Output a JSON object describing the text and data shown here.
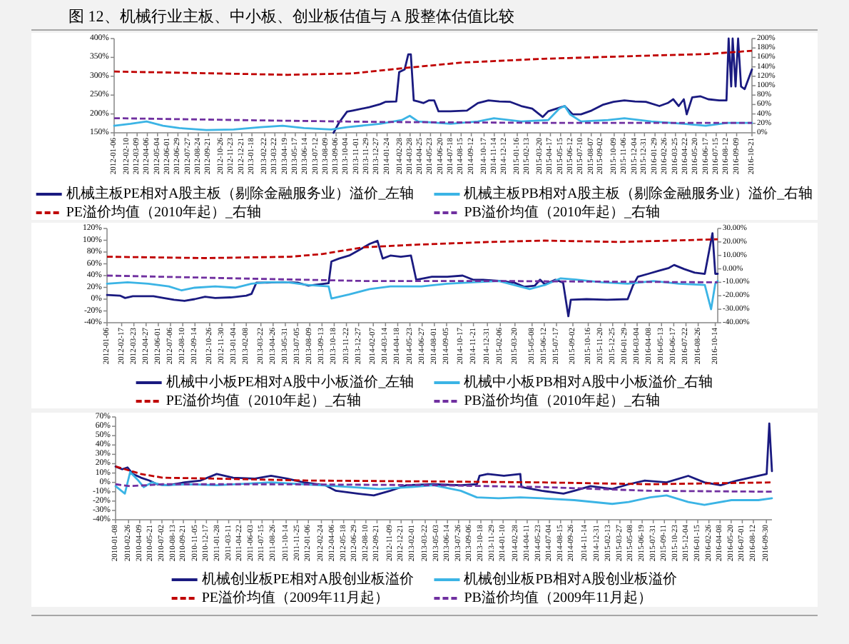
{
  "chart_data": [
    {
      "type": "line",
      "title": "图 12、机械行业主板、中小板、创业板估值与 A 股整体估值比较",
      "legend": "bottom",
      "xlim": [
        "2012-01-06",
        "2016-10-21"
      ],
      "xticks": [
        "2012-01-06",
        "2012-02-10",
        "2012-03-09",
        "2012-04-06",
        "2012-05-04",
        "2012-06-01",
        "2012-06-29",
        "2012-07-27",
        "2012-08-24",
        "2012-09-21",
        "2012-10-26",
        "2012-11-23",
        "2012-12-21",
        "2013-01-18",
        "2013-02-22",
        "2013-03-22",
        "2013-04-19",
        "2013-05-17",
        "2013-06-14",
        "2013-07-12",
        "2013-08-09",
        "2013-09-06",
        "2013-10-04",
        "2013-11-01",
        "2013-11-29",
        "2013-12-27",
        "2014-01-24",
        "2014-02-28",
        "2014-03-28",
        "2014-04-25",
        "2014-05-23",
        "2014-06-20",
        "2014-07-18",
        "2014-08-15",
        "2014-09-12",
        "2014-10-17",
        "2014-11-14",
        "2014-12-12",
        "2015-01-16",
        "2015-02-13",
        "2015-03-20",
        "2015-04-17",
        "2015-05-15",
        "2015-06-12",
        "2015-07-10",
        "2015-08-07",
        "2015-09-02",
        "2015-10-09",
        "2015-11-06",
        "2015-12-04",
        "2015-12-31",
        "2016-01-29",
        "2016-02-26",
        "2016-03-25",
        "2016-04-22",
        "2016-05-20",
        "2016-06-17",
        "2016-07-15",
        "2016-08-12",
        "2016-09-09",
        "2016-10-21"
      ],
      "ylim": [
        150,
        400
      ],
      "yticks": [
        {
          "value": 150,
          "label": "150%"
        },
        {
          "value": 200,
          "label": "200%"
        },
        {
          "value": 250,
          "label": "250%"
        },
        {
          "value": 300,
          "label": "300%"
        },
        {
          "value": 350,
          "label": "350%"
        },
        {
          "value": 400,
          "label": "400%"
        }
      ],
      "y2lim": [
        0,
        200
      ],
      "y2ticks": [
        {
          "value": 0,
          "label": "0%"
        },
        {
          "value": 20,
          "label": "20%"
        },
        {
          "value": 40,
          "label": "40%"
        },
        {
          "value": 60,
          "label": "60%"
        },
        {
          "value": 80,
          "label": "80%"
        },
        {
          "value": 100,
          "label": "100%"
        },
        {
          "value": 120,
          "label": "120%"
        },
        {
          "value": 140,
          "label": "140%"
        },
        {
          "value": 160,
          "label": "160%"
        },
        {
          "value": 180,
          "label": "180%"
        },
        {
          "value": 200,
          "label": "200%"
        }
      ],
      "series": [
        {
          "name": "机械主板PE相对A股主板（剔除金融服务业）溢价_左轴",
          "color": "#1a1a80",
          "line_style": "solid",
          "x": [
            "2013-08-30",
            "2013-09-14",
            "2013-10-06",
            "2013-10-22",
            "2013-12-06",
            "2014-01-05",
            "2014-01-19",
            "2014-02-18",
            "2014-02-26",
            "2014-03-13",
            "2014-03-23",
            "2014-03-30",
            "2014-04-07",
            "2014-04-19",
            "2014-05-04",
            "2014-05-19",
            "2014-06-02",
            "2014-06-14",
            "2014-07-17",
            "2014-08-31",
            "2014-09-30",
            "2014-10-29",
            "2014-11-28",
            "2014-12-28",
            "2015-01-27",
            "2015-02-26",
            "2015-03-27",
            "2015-04-11",
            "2015-05-04",
            "2015-05-26",
            "2015-06-17",
            "2015-07-10",
            "2015-08-08",
            "2015-09-07",
            "2015-10-07",
            "2015-11-06",
            "2015-12-05",
            "2016-01-04",
            "2016-02-10",
            "2016-03-04",
            "2016-03-19",
            "2016-04-03",
            "2016-04-17",
            "2016-04-25",
            "2016-05-10",
            "2016-06-01",
            "2016-06-23",
            "2016-07-23",
            "2016-08-12",
            "2016-08-18",
            "2016-08-25",
            "2016-08-29",
            "2016-09-06",
            "2016-09-13",
            "2016-09-21",
            "2016-10-01",
            "2016-10-21"
          ],
          "values": [
            150,
            177,
            206,
            209,
            218,
            226,
            232,
            233,
            311,
            318,
            358,
            358,
            236,
            233,
            229,
            236,
            236,
            207,
            207,
            209,
            229,
            236,
            233,
            232,
            221,
            214,
            192,
            207,
            214,
            221,
            199,
            199,
            209,
            224,
            232,
            236,
            233,
            232,
            221,
            229,
            239,
            221,
            239,
            199,
            244,
            247,
            239,
            236,
            236,
            400,
            273,
            400,
            273,
            400,
            273,
            266,
            318
          ]
        },
        {
          "name": "机械主板PB相对A股主板（剔除金融服务业）溢价_右轴",
          "color": "#3bb4e5",
          "line_style": "solid",
          "axis": "y2",
          "x": [
            "2012-01-06",
            "2012-02-20",
            "2012-04-04",
            "2012-05-19",
            "2012-07-03",
            "2012-09-15",
            "2012-11-29",
            "2013-02-11",
            "2013-04-12",
            "2013-06-10",
            "2013-08-24",
            "2013-10-06",
            "2014-01-05",
            "2014-03-05",
            "2014-03-27",
            "2014-04-19",
            "2014-07-17",
            "2014-09-30",
            "2014-11-13",
            "2015-01-27",
            "2015-04-11",
            "2015-05-11",
            "2015-05-26",
            "2015-06-10",
            "2015-07-10",
            "2015-09-22",
            "2015-11-06",
            "2016-01-19",
            "2016-04-17",
            "2016-06-16",
            "2016-08-15",
            "2016-10-21"
          ],
          "values": [
            15,
            19,
            24,
            15,
            10,
            6,
            7,
            12,
            15,
            10,
            7,
            12,
            19,
            27,
            36,
            24,
            19,
            24,
            31,
            24,
            27,
            51,
            57,
            39,
            24,
            27,
            31,
            24,
            19,
            15,
            21,
            21
          ]
        },
        {
          "name": "PE溢价均值（2010年起）_右轴",
          "color": "#c00000",
          "line_style": "dashed",
          "axis": "y2",
          "x": [
            "2012-01-06",
            "2012-10-15",
            "2013-04-26",
            "2013-10-22",
            "2014-03-20",
            "2014-08-16",
            "2015-03-27",
            "2016-01-19",
            "2016-06-16",
            "2016-10-21"
          ],
          "values": [
            130,
            126,
            123,
            126,
            138,
            149,
            157,
            164,
            167,
            174
          ]
        },
        {
          "name": "PB溢价均值（2010年起）_右轴",
          "color": "#7030a0",
          "line_style": "dashed",
          "axis": "y2",
          "x": [
            "2012-01-06",
            "2013-03-13",
            "2014-01-05",
            "2015-03-27",
            "2016-10-21"
          ],
          "values": [
            31,
            26,
            23,
            21,
            21
          ]
        }
      ]
    },
    {
      "type": "line",
      "legend": "bottom",
      "xlim": [
        "2012-01-06",
        "2016-10-21"
      ],
      "xticks": [
        "2012-01-06",
        "2012-02-17",
        "2012-03-23",
        "2012-04-27",
        "2012-06-01",
        "2012-07-06",
        "2012-08-10",
        "2012-09-14",
        "2012-10-26",
        "2012-11-30",
        "2013-01-04",
        "2013-02-08",
        "2013-03-22",
        "2013-04-26",
        "2013-05-31",
        "2013-07-05",
        "2013-08-09",
        "2013-09-13",
        "2013-10-18",
        "2013-11-22",
        "2013-12-27",
        "2014-02-07",
        "2014-03-14",
        "2014-04-18",
        "2014-05-23",
        "2014-06-27",
        "2014-08-01",
        "2014-09-05",
        "2014-10-17",
        "2014-11-21",
        "2014-12-31",
        "2015-02-06",
        "2015-03-20",
        "2015-05-08",
        "2015-06-12",
        "2015-07-17",
        "2015-09-02",
        "2015-10-16",
        "2015-11-20",
        "2015-12-25",
        "2016-01-29",
        "2016-03-04",
        "2016-04-08",
        "2016-05-13",
        "2016-06-17",
        "2016-07-22",
        "2016-08-26",
        "2016-10-14"
      ],
      "ylim": [
        -40,
        120
      ],
      "yticks": [
        {
          "value": -40,
          "label": "-40%"
        },
        {
          "value": -20,
          "label": "-20%"
        },
        {
          "value": 0,
          "label": "0%"
        },
        {
          "value": 20,
          "label": "20%"
        },
        {
          "value": 40,
          "label": "40%"
        },
        {
          "value": 60,
          "label": "60%"
        },
        {
          "value": 80,
          "label": "80%"
        },
        {
          "value": 100,
          "label": "100%"
        },
        {
          "value": 120,
          "label": "120%"
        }
      ],
      "y2lim": [
        -40,
        30
      ],
      "y2ticks": [
        {
          "value": -40,
          "label": "-40.00%"
        },
        {
          "value": -30,
          "label": "-30.00%"
        },
        {
          "value": -20,
          "label": "-20.00%"
        },
        {
          "value": -10,
          "label": "-10.00%"
        },
        {
          "value": 0,
          "label": "0.00%"
        },
        {
          "value": 10,
          "label": "10.00%"
        },
        {
          "value": 20,
          "label": "20.00%"
        },
        {
          "value": 30,
          "label": "30.00%"
        }
      ],
      "series": [
        {
          "name": "机械中小板PE相对A股中小板溢价_左轴",
          "color": "#1a1a80",
          "line_style": "solid",
          "x": [
            "2012-01-06",
            "2012-02-12",
            "2012-02-27",
            "2012-03-20",
            "2012-05-18",
            "2012-06-16",
            "2012-07-16",
            "2012-08-15",
            "2012-09-13",
            "2012-10-13",
            "2012-11-11",
            "2012-12-25",
            "2013-02-08",
            "2013-02-23",
            "2013-03-09",
            "2013-04-08",
            "2013-05-22",
            "2013-07-05",
            "2013-08-04",
            "2013-09-03",
            "2013-10-02",
            "2013-10-10",
            "2013-11-01",
            "2013-11-30",
            "2013-12-30",
            "2014-01-28",
            "2014-02-19",
            "2014-03-06",
            "2014-03-28",
            "2014-04-27",
            "2014-05-26",
            "2014-06-10",
            "2014-07-25",
            "2014-09-07",
            "2014-10-21",
            "2014-11-20",
            "2014-12-19",
            "2015-02-02",
            "2015-03-18",
            "2015-04-16",
            "2015-05-16",
            "2015-05-31",
            "2015-06-14",
            "2015-07-14",
            "2015-08-05",
            "2015-08-20",
            "2015-08-27",
            "2015-10-11",
            "2015-12-09",
            "2016-02-06",
            "2016-02-21",
            "2016-03-06",
            "2016-04-05",
            "2016-05-04",
            "2016-06-03",
            "2016-06-18",
            "2016-07-17",
            "2016-08-16",
            "2016-09-14",
            "2016-10-06",
            "2016-10-14",
            "2016-10-21"
          ],
          "values": [
            7,
            6,
            2,
            5,
            5,
            2,
            -1,
            -3,
            0,
            4,
            2,
            3,
            6,
            9,
            28,
            28,
            29,
            28,
            23,
            25,
            27,
            64,
            69,
            74,
            84,
            94,
            99,
            69,
            74,
            72,
            74,
            33,
            38,
            38,
            40,
            33,
            33,
            31,
            28,
            21,
            23,
            33,
            25,
            33,
            28,
            -29,
            -1,
            0,
            -1,
            0,
            23,
            38,
            43,
            48,
            53,
            58,
            51,
            45,
            43,
            112,
            43,
            43
          ]
        },
        {
          "name": "机械中小板PB相对A股中小板溢价_右轴",
          "color": "#3bb4e5",
          "line_style": "solid",
          "axis": "y2",
          "x": [
            "2012-01-06",
            "2012-03-05",
            "2012-05-03",
            "2012-07-01",
            "2012-08-07",
            "2012-09-13",
            "2012-11-11",
            "2013-01-09",
            "2013-02-23",
            "2013-04-08",
            "2013-06-06",
            "2013-08-04",
            "2013-10-02",
            "2013-10-10",
            "2013-11-30",
            "2014-01-28",
            "2014-03-28",
            "2014-06-25",
            "2014-09-07",
            "2014-11-20",
            "2015-02-02",
            "2015-04-02",
            "2015-05-01",
            "2015-06-14",
            "2015-07-29",
            "2015-09-11",
            "2015-11-24",
            "2016-02-06",
            "2016-04-20",
            "2016-07-02",
            "2016-09-14",
            "2016-10-02",
            "2016-10-14",
            "2016-10-21"
          ],
          "values": [
            -11,
            -10,
            -11,
            -13,
            -16,
            -14,
            -13,
            -14,
            -11,
            -10,
            -10,
            -12,
            -13,
            -22,
            -19,
            -15,
            -13,
            -13,
            -11,
            -10,
            -9,
            -13,
            -15,
            -12,
            -7,
            -8,
            -10,
            -11,
            -9,
            -11,
            -12,
            -30,
            -11,
            -9
          ]
        },
        {
          "name": "PE溢价均值（2010年起）_右轴",
          "color": "#c00000",
          "line_style": "dashed",
          "axis": "y2",
          "x": [
            "2012-01-06",
            "2012-10-15",
            "2013-06-14",
            "2013-09-13",
            "2014-01-10",
            "2014-06-13",
            "2015-01-09",
            "2015-06-12",
            "2016-01-08",
            "2016-06-10",
            "2016-10-21"
          ],
          "values": [
            9,
            8,
            9,
            11,
            16,
            18,
            20,
            21,
            20,
            21,
            22
          ]
        },
        {
          "name": "PB溢价均值（2010年起）_右轴",
          "color": "#7030a0",
          "line_style": "dashed",
          "axis": "y2",
          "x": [
            "2012-01-06",
            "2013-01-04",
            "2014-01-10",
            "2015-01-09",
            "2016-10-21"
          ],
          "values": [
            -5,
            -7,
            -9,
            -9,
            -10
          ]
        }
      ]
    },
    {
      "type": "line",
      "legend": "bottom",
      "xlim": [
        "2010-01-08",
        "2016-10-21"
      ],
      "xticks": [
        "2010-01-08",
        "2010-02-26",
        "2010-04-09",
        "2010-05-21",
        "2010-07-02",
        "2010-08-13",
        "2010-09-21",
        "2010-11-05",
        "2010-12-17",
        "2011-01-28",
        "2011-03-11",
        "2011-04-22",
        "2011-06-03",
        "2011-07-15",
        "2011-08-26",
        "2011-10-14",
        "2011-11-25",
        "2012-01-06",
        "2012-02-24",
        "2012-04-06",
        "2012-05-18",
        "2012-06-29",
        "2012-08-10",
        "2012-09-21",
        "2012-11-09",
        "2012-12-21",
        "2013-02-01",
        "2013-03-22",
        "2013-05-03",
        "2013-06-14",
        "2013-07-26",
        "2013-09-06",
        "2013-10-18",
        "2013-11-29",
        "2014-01-10",
        "2014-02-28",
        "2014-04-11",
        "2014-05-23",
        "2014-07-04",
        "2014-08-15",
        "2014-09-26",
        "2014-11-14",
        "2014-12-31",
        "2015-02-13",
        "2015-03-27",
        "2015-05-08",
        "2015-06-19",
        "2015-07-31",
        "2015-09-11",
        "2015-10-23",
        "2015-12-04",
        "2016-01-15",
        "2016-02-26",
        "2016-04-08",
        "2016-05-20",
        "2016-07-01",
        "2016-08-12",
        "2016-09-30"
      ],
      "ylim": [
        -40,
        70
      ],
      "yticks": [
        {
          "value": -40,
          "label": "-40%"
        },
        {
          "value": -30,
          "label": "-30%"
        },
        {
          "value": -20,
          "label": "-20%"
        },
        {
          "value": -10,
          "label": "-10%"
        },
        {
          "value": 0,
          "label": "0%"
        },
        {
          "value": 10,
          "label": "10%"
        },
        {
          "value": 20,
          "label": "20%"
        },
        {
          "value": 30,
          "label": "30%"
        },
        {
          "value": 40,
          "label": "40%"
        },
        {
          "value": 50,
          "label": "50%"
        },
        {
          "value": 60,
          "label": "60%"
        },
        {
          "value": 70,
          "label": "70%"
        }
      ],
      "series": [
        {
          "name": "机械创业板PE相对A股创业板溢价",
          "color": "#1a1a80",
          "line_style": "solid",
          "x": [
            "2010-01-08",
            "2010-02-02",
            "2010-02-22",
            "2010-03-14",
            "2010-04-14",
            "2010-05-15",
            "2010-06-14",
            "2010-07-25",
            "2010-09-25",
            "2010-11-25",
            "2011-01-25",
            "2011-03-28",
            "2011-06-18",
            "2011-08-18",
            "2011-10-18",
            "2011-12-19",
            "2012-03-09",
            "2012-04-19",
            "2012-07-10",
            "2012-09-09",
            "2012-11-10",
            "2013-01-10",
            "2013-04-22",
            "2013-08-03",
            "2013-10-03",
            "2013-10-13",
            "2013-11-13",
            "2014-01-13",
            "2014-03-16",
            "2014-03-20",
            "2014-06-05",
            "2014-08-26",
            "2014-10-06",
            "2014-12-06",
            "2015-02-26",
            "2015-04-29",
            "2015-06-29",
            "2015-09-19",
            "2015-12-10",
            "2016-02-09",
            "2016-04-10",
            "2016-06-11",
            "2016-08-31",
            "2016-10-01",
            "2016-10-11",
            "2016-10-21"
          ],
          "values": [
            17,
            14,
            16,
            9,
            5,
            2,
            -2,
            -3,
            0,
            2,
            9,
            5,
            4,
            7,
            4,
            0,
            -3,
            -9,
            -12,
            -14,
            -9,
            -3,
            -2,
            -3,
            -2,
            7,
            9,
            7,
            9,
            -5,
            -9,
            -12,
            -9,
            -4,
            -7,
            -2,
            2,
            0,
            7,
            0,
            -3,
            2,
            7,
            9,
            63,
            12
          ]
        },
        {
          "name": "机械创业板PB相对A股创业板溢价",
          "color": "#3bb4e5",
          "line_style": "solid",
          "x": [
            "2010-01-08",
            "2010-02-12",
            "2010-03-04",
            "2010-04-04",
            "2010-04-24",
            "2010-05-25",
            "2010-07-05",
            "2010-10-15",
            "2011-01-25",
            "2011-08-18",
            "2011-12-19",
            "2012-04-19",
            "2012-09-30",
            "2013-01-31",
            "2013-04-22",
            "2013-08-03",
            "2013-10-03",
            "2013-12-24",
            "2014-03-16",
            "2014-06-05",
            "2014-10-06",
            "2015-02-26",
            "2015-04-29",
            "2015-07-19",
            "2015-09-19",
            "2015-12-10",
            "2016-02-09",
            "2016-05-21",
            "2016-08-31",
            "2016-10-21"
          ],
          "values": [
            -4,
            -12,
            11,
            2,
            -5,
            0,
            -3,
            -2,
            -3,
            0,
            -2,
            -4,
            -7,
            -5,
            -3,
            -9,
            -16,
            -17,
            -16,
            -17,
            -19,
            -23,
            -21,
            -16,
            -14,
            -21,
            -24,
            -19,
            -19,
            -17
          ]
        },
        {
          "name": "PE溢价均值（2009年11月起）",
          "color": "#c00000",
          "line_style": "dashed",
          "x": [
            "2010-01-08",
            "2010-04-14",
            "2010-07-05",
            "2011-01-25",
            "2011-12-19",
            "2013-04-22",
            "2014-06-05",
            "2015-07-19",
            "2016-10-21"
          ],
          "values": [
            17,
            9,
            5,
            4,
            2,
            1,
            0,
            -2,
            0
          ]
        },
        {
          "name": "PB溢价均值（2009年11月起）",
          "color": "#7030a0",
          "line_style": "dashed",
          "x": [
            "2010-01-08",
            "2010-03-04",
            "2010-07-05",
            "2011-08-18",
            "2013-04-22",
            "2014-06-05",
            "2015-07-19",
            "2016-10-21"
          ],
          "values": [
            -2,
            -4,
            -2,
            -2,
            -3,
            -5,
            -9,
            -10
          ]
        }
      ]
    }
  ]
}
